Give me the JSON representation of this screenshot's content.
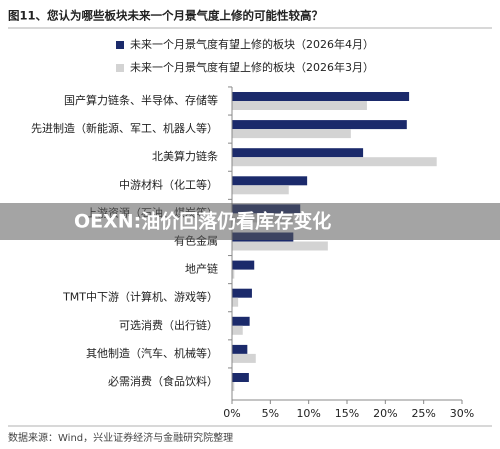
{
  "chart_data": {
    "type": "hbar",
    "title": "图11、您认为哪些板块未来一个月景气度上修的可能性较高？",
    "source": "数据来源：Wind，兴业证券经济与金融研究院整理",
    "categories": [
      "国产算力链条、半导体、存储等",
      "先进制造（新能源、军工、机器人等）",
      "北美算力链条",
      "中游材料（化工等）",
      "上游资源（石油、煤炭等）",
      "有色金属",
      "地产链",
      "TMT中下游（计算机、游戏等）",
      "可选消费（出行链）",
      "其他制造（汽车、机械等）",
      "必需消费（食品饮料）"
    ],
    "series": [
      {
        "name": "未来一个月景气度有望上修的板块（2026年4月）",
        "color": "#1b2a6b",
        "values": [
          23.1,
          22.8,
          17.1,
          9.8,
          8.9,
          8.0,
          2.9,
          2.6,
          2.3,
          2.0,
          2.2
        ]
      },
      {
        "name": "未来一个月景气度有望上修的板块（2026年3月）",
        "color": "#d3d3d3",
        "values": [
          17.6,
          15.5,
          26.7,
          7.4,
          8.0,
          12.5,
          0.3,
          0.8,
          1.4,
          3.1,
          0.3
        ]
      }
    ],
    "xlim": [
      0,
      30
    ],
    "xticks": [
      {
        "value": 0,
        "label": "0%"
      },
      {
        "value": 5,
        "label": "5%"
      },
      {
        "value": 10,
        "label": "10%"
      },
      {
        "value": 15,
        "label": "15%"
      },
      {
        "value": 20,
        "label": "20%"
      },
      {
        "value": 25,
        "label": "25%"
      },
      {
        "value": 30,
        "label": "30%"
      }
    ]
  },
  "banner": {
    "text": "OEXN:油价回落仍看库存变化"
  }
}
